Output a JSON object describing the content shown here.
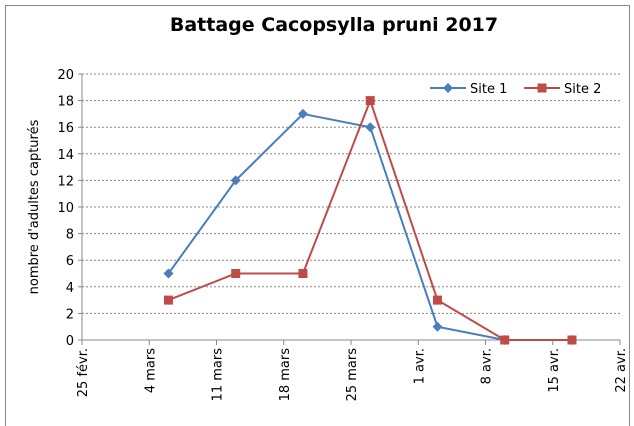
{
  "chart_data": {
    "type": "line",
    "title": "Battage Cacopsylla pruni 2017",
    "ylabel": "nombre d'adultes capturés",
    "x": [
      65,
      72,
      79,
      86,
      93,
      100,
      107
    ],
    "series": [
      {
        "name": "Site 1",
        "color": "#4a7ebb",
        "marker": "diamond",
        "values": [
          5,
          12,
          17,
          16,
          1,
          0,
          0
        ]
      },
      {
        "name": "Site 2",
        "color": "#be4b48",
        "marker": "square",
        "values": [
          3,
          5,
          5,
          18,
          3,
          0,
          0
        ]
      }
    ],
    "xlim": [
      56,
      112
    ],
    "xticks": [
      {
        "value": 56,
        "label": "25 févr."
      },
      {
        "value": 63,
        "label": "4 mars"
      },
      {
        "value": 70,
        "label": "11 mars"
      },
      {
        "value": 77,
        "label": "18 mars"
      },
      {
        "value": 84,
        "label": "25 mars"
      },
      {
        "value": 91,
        "label": "1 avr."
      },
      {
        "value": 98,
        "label": "8 avr."
      },
      {
        "value": 105,
        "label": "15 avr."
      },
      {
        "value": 112,
        "label": "22 avr."
      }
    ],
    "ylim": [
      0,
      20
    ],
    "yticks": [
      0,
      2,
      4,
      6,
      8,
      10,
      12,
      14,
      16,
      18,
      20
    ],
    "grid": true,
    "legend": "top-right"
  }
}
